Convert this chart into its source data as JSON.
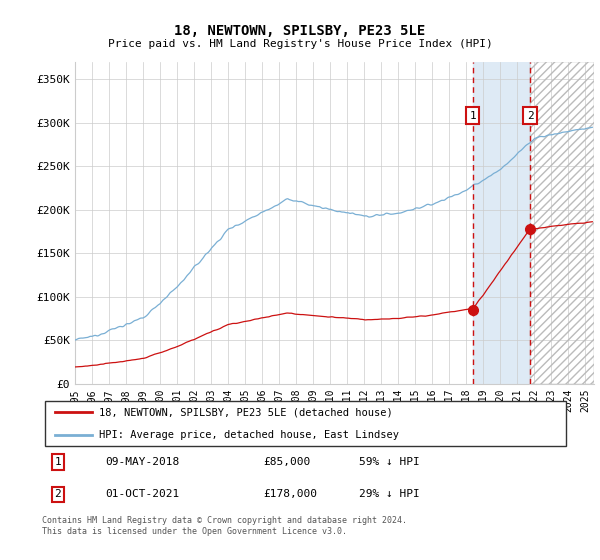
{
  "title": "18, NEWTOWN, SPILSBY, PE23 5LE",
  "subtitle": "Price paid vs. HM Land Registry's House Price Index (HPI)",
  "ylabel_ticks": [
    "£0",
    "£50K",
    "£100K",
    "£150K",
    "£200K",
    "£250K",
    "£300K",
    "£350K"
  ],
  "ytick_vals": [
    0,
    50000,
    100000,
    150000,
    200000,
    250000,
    300000,
    350000
  ],
  "ylim": [
    0,
    370000
  ],
  "xlim_start": 1995.0,
  "xlim_end": 2025.5,
  "transaction1_date": "09-MAY-2018",
  "transaction1_price": 85000,
  "transaction1_year": 2018.37,
  "transaction1_label": "59% ↓ HPI",
  "transaction2_date": "01-OCT-2021",
  "transaction2_price": 178000,
  "transaction2_year": 2021.75,
  "transaction2_label": "29% ↓ HPI",
  "hpi_line_color": "#7aafd4",
  "property_line_color": "#cc1111",
  "vline_color": "#cc1111",
  "shade_color": "#deeaf5",
  "footer_text": "Contains HM Land Registry data © Crown copyright and database right 2024.\nThis data is licensed under the Open Government Licence v3.0.",
  "legend_label1": "18, NEWTOWN, SPILSBY, PE23 5LE (detached house)",
  "legend_label2": "HPI: Average price, detached house, East Lindsey"
}
